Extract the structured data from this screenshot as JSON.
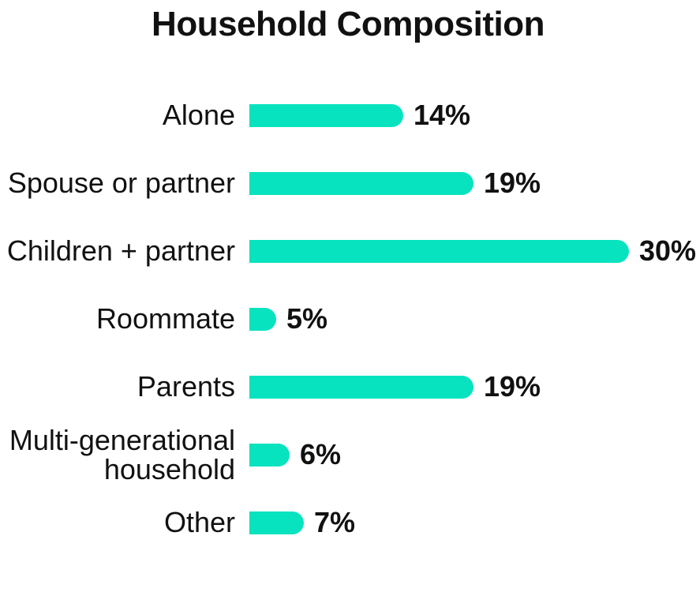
{
  "chart_data": {
    "type": "bar",
    "orientation": "horizontal",
    "title": "Household Composition",
    "categories": [
      "Alone",
      "Spouse or partner",
      "Children + partner",
      "Roommate",
      "Parents",
      "Multi-generational household",
      "Other"
    ],
    "values": [
      14,
      19,
      30,
      5,
      19,
      6,
      7
    ],
    "value_labels": [
      "14%",
      "19%",
      "30%",
      "5%",
      "19%",
      "6%",
      "7%"
    ],
    "xlim": [
      0,
      30
    ],
    "grid": false,
    "legend": "none",
    "bar_color": "#07E3BF",
    "text_color": "#111111",
    "background_color": "#FFFFFF"
  }
}
